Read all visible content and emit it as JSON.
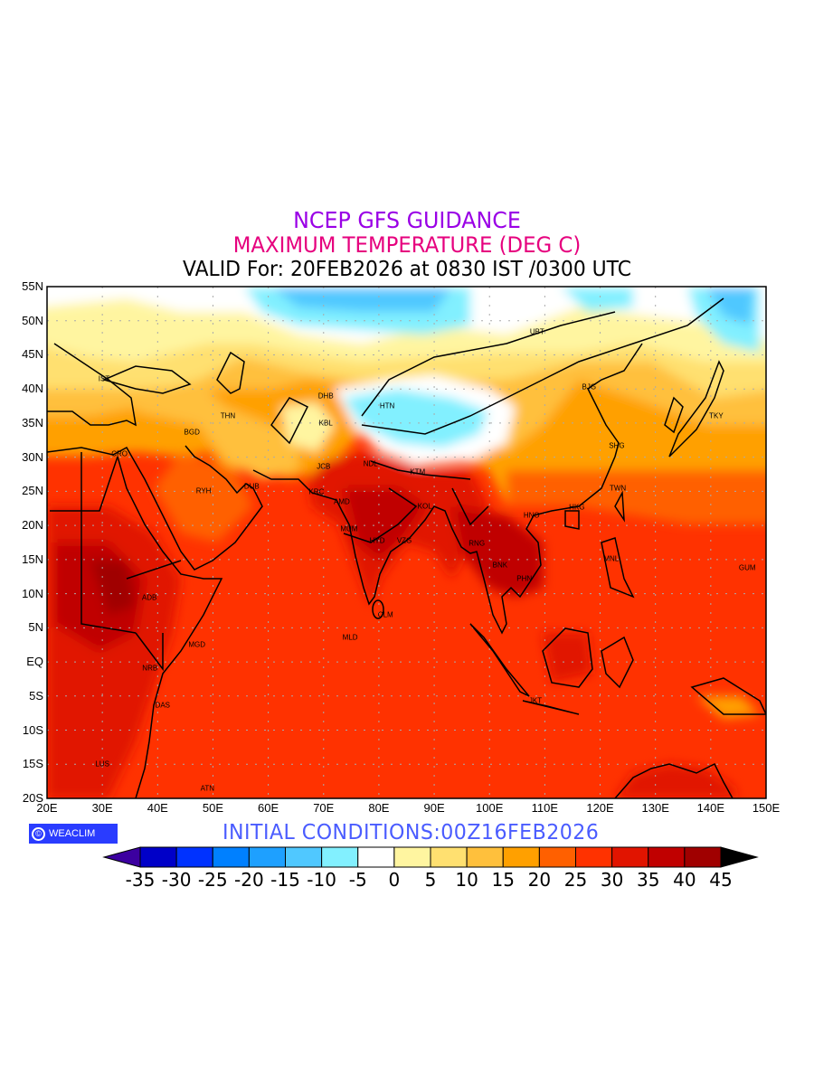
{
  "header": {
    "title_line1": "NCEP GFS GUIDANCE",
    "title_line2": "MAXIMUM TEMPERATURE (DEG C)",
    "title_line3": "VALID For: 20FEB2026 at 0830 IST /0300 UTC"
  },
  "footer": {
    "logo_text": "WEACLIM",
    "logo_symbol": "©",
    "initial_conditions": "INITIAL  CONDITIONS:00Z16FEB2026"
  },
  "map": {
    "lon_range": [
      20,
      150
    ],
    "lat_range": [
      -20,
      55
    ],
    "lon_ticks": [
      {
        "v": 20,
        "label": "20E"
      },
      {
        "v": 30,
        "label": "30E"
      },
      {
        "v": 40,
        "label": "40E"
      },
      {
        "v": 50,
        "label": "50E"
      },
      {
        "v": 60,
        "label": "60E"
      },
      {
        "v": 70,
        "label": "70E"
      },
      {
        "v": 80,
        "label": "80E"
      },
      {
        "v": 90,
        "label": "90E"
      },
      {
        "v": 100,
        "label": "100E"
      },
      {
        "v": 110,
        "label": "110E"
      },
      {
        "v": 120,
        "label": "120E"
      },
      {
        "v": 130,
        "label": "130E"
      },
      {
        "v": 140,
        "label": "140E"
      },
      {
        "v": 150,
        "label": "150E"
      }
    ],
    "lat_ticks": [
      {
        "v": 55,
        "label": "55N"
      },
      {
        "v": 50,
        "label": "50N"
      },
      {
        "v": 45,
        "label": "45N"
      },
      {
        "v": 40,
        "label": "40N"
      },
      {
        "v": 35,
        "label": "35N"
      },
      {
        "v": 30,
        "label": "30N"
      },
      {
        "v": 25,
        "label": "25N"
      },
      {
        "v": 20,
        "label": "20N"
      },
      {
        "v": 15,
        "label": "15N"
      },
      {
        "v": 10,
        "label": "10N"
      },
      {
        "v": 5,
        "label": "5N"
      },
      {
        "v": 0,
        "label": "EQ"
      },
      {
        "v": -5,
        "label": "5S"
      },
      {
        "v": -10,
        "label": "10S"
      },
      {
        "v": -15,
        "label": "15S"
      },
      {
        "v": -20,
        "label": "20S"
      }
    ],
    "cities": [
      {
        "name": "IST",
        "lon": 30.3,
        "lat": 41.5
      },
      {
        "name": "CRO",
        "lon": 33.1,
        "lat": 30.5
      },
      {
        "name": "BGD",
        "lon": 46.2,
        "lat": 33.7
      },
      {
        "name": "THN",
        "lon": 52.7,
        "lat": 36.1
      },
      {
        "name": "RYH",
        "lon": 48.3,
        "lat": 25.1
      },
      {
        "name": "DUB",
        "lon": 57.0,
        "lat": 25.7
      },
      {
        "name": "DHB",
        "lon": 70.4,
        "lat": 39.0
      },
      {
        "name": "KBL",
        "lon": 70.4,
        "lat": 35.0
      },
      {
        "name": "HTN",
        "lon": 81.5,
        "lat": 37.5
      },
      {
        "name": "JCB",
        "lon": 70.0,
        "lat": 28.6
      },
      {
        "name": "KRC",
        "lon": 68.7,
        "lat": 24.9
      },
      {
        "name": "AMD",
        "lon": 73.3,
        "lat": 23.5
      },
      {
        "name": "NDL",
        "lon": 78.5,
        "lat": 29.0
      },
      {
        "name": "MUM",
        "lon": 74.6,
        "lat": 19.5
      },
      {
        "name": "HYD",
        "lon": 79.7,
        "lat": 17.8
      },
      {
        "name": "VZG",
        "lon": 84.6,
        "lat": 17.8
      },
      {
        "name": "KTM",
        "lon": 87.0,
        "lat": 27.8
      },
      {
        "name": "KOL",
        "lon": 88.3,
        "lat": 22.8
      },
      {
        "name": "CLM",
        "lon": 81.2,
        "lat": 6.9
      },
      {
        "name": "MLD",
        "lon": 74.8,
        "lat": 3.6
      },
      {
        "name": "ADB",
        "lon": 38.5,
        "lat": 9.4
      },
      {
        "name": "MGD",
        "lon": 47.1,
        "lat": 2.5
      },
      {
        "name": "NRB",
        "lon": 38.6,
        "lat": -0.9
      },
      {
        "name": "DAS",
        "lon": 40.9,
        "lat": -6.3
      },
      {
        "name": "LUS",
        "lon": 30.0,
        "lat": -15.0
      },
      {
        "name": "ATN",
        "lon": 49.0,
        "lat": -18.5
      },
      {
        "name": "UBT",
        "lon": 108.6,
        "lat": 48.4
      },
      {
        "name": "BJG",
        "lon": 118.0,
        "lat": 40.3
      },
      {
        "name": "SHG",
        "lon": 123.0,
        "lat": 31.7
      },
      {
        "name": "TKY",
        "lon": 141.0,
        "lat": 36.0
      },
      {
        "name": "TWN",
        "lon": 123.2,
        "lat": 25.5
      },
      {
        "name": "HKG",
        "lon": 115.8,
        "lat": 22.7
      },
      {
        "name": "HNO",
        "lon": 107.6,
        "lat": 21.5
      },
      {
        "name": "RNG",
        "lon": 97.7,
        "lat": 17.4
      },
      {
        "name": "BNK",
        "lon": 101.9,
        "lat": 14.2
      },
      {
        "name": "PHN",
        "lon": 106.3,
        "lat": 12.2
      },
      {
        "name": "MNL",
        "lon": 122.0,
        "lat": 15.1
      },
      {
        "name": "GUM",
        "lon": 146.6,
        "lat": 13.8
      },
      {
        "name": "JKT",
        "lon": 108.3,
        "lat": -5.7
      }
    ]
  },
  "colorbar": {
    "levels": [
      -35,
      -30,
      -25,
      -20,
      -15,
      -10,
      -5,
      0,
      5,
      10,
      15,
      20,
      25,
      30,
      35,
      40,
      45
    ],
    "labels": [
      "-35",
      "-30",
      "-25",
      "-20",
      "-15",
      "-10",
      "-5",
      "0",
      "5",
      "10",
      "15",
      "20",
      "25",
      "30",
      "35",
      "40",
      "45"
    ],
    "under_color": "#3c00a0",
    "over_color": "#000000",
    "colors": [
      "#0000c8",
      "#0032ff",
      "#0080ff",
      "#1ea0ff",
      "#50c8ff",
      "#82f0ff",
      "#ffffff",
      "#fff5a0",
      "#ffe070",
      "#ffc03c",
      "#ffa000",
      "#ff6000",
      "#ff3200",
      "#e11400",
      "#c00000",
      "#a00000"
    ]
  }
}
